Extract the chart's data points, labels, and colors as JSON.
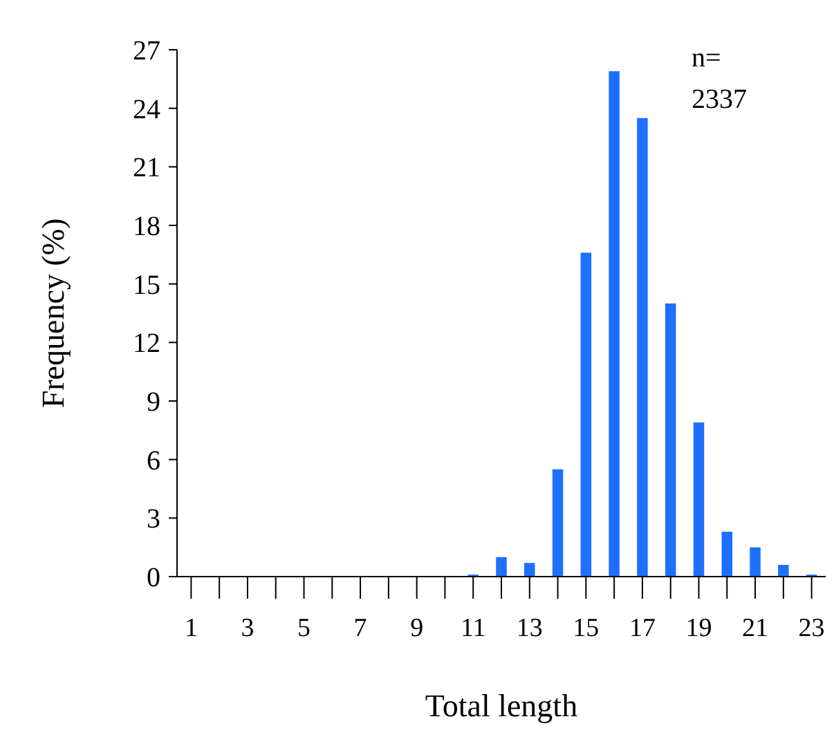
{
  "chart_data": {
    "type": "bar",
    "xlabel": "Total length",
    "ylabel": "Frequency (%)",
    "x": [
      1,
      2,
      3,
      4,
      5,
      6,
      7,
      8,
      9,
      10,
      11,
      12,
      13,
      14,
      15,
      16,
      17,
      18,
      19,
      20,
      21,
      22,
      23
    ],
    "values": [
      0,
      0,
      0,
      0,
      0,
      0,
      0,
      0,
      0,
      0,
      0.1,
      1.0,
      0.7,
      5.5,
      16.6,
      25.9,
      23.5,
      14.0,
      7.9,
      2.3,
      1.5,
      0.6,
      0.1
    ],
    "color": "#1f6fff",
    "xlim": [
      0.5,
      23.5
    ],
    "xticks": [
      1,
      {
        "value": 2,
        "label": null
      },
      3,
      {
        "value": 4,
        "label": null
      },
      5,
      {
        "value": 6,
        "label": null
      },
      7,
      {
        "value": 8,
        "label": null
      },
      9,
      {
        "value": 10,
        "label": null
      },
      11,
      {
        "value": 12,
        "label": null
      },
      13,
      {
        "value": 14,
        "label": null
      },
      15,
      {
        "value": 16,
        "label": null
      },
      17,
      {
        "value": 18,
        "label": null
      },
      19,
      {
        "value": 20,
        "label": null
      },
      21,
      {
        "value": 22,
        "label": null
      },
      23
    ],
    "ylim": [
      0,
      27
    ],
    "yticks": [
      0,
      3,
      6,
      9,
      12,
      15,
      18,
      21,
      24,
      27
    ],
    "grid": false,
    "annotations": [
      "n= 2337"
    ]
  }
}
